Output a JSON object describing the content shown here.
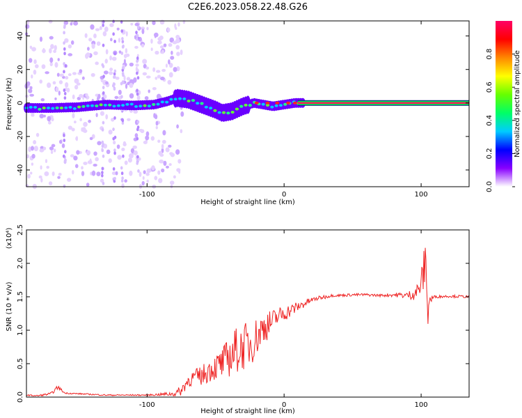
{
  "title": "C2E6.2023.058.22.48.G26",
  "chart_data": [
    {
      "type": "heatmap",
      "xlabel": "Height of straight line (km)",
      "ylabel": "Frequency (Hz)",
      "xlim": [
        -188,
        135
      ],
      "ylim": [
        -50,
        49
      ],
      "xticks": [
        -100,
        0,
        100
      ],
      "xtick_labels": [
        "-100",
        "0",
        "100"
      ],
      "yticks": [
        -40,
        -20,
        0,
        20,
        40
      ],
      "ytick_labels": [
        "-40",
        "-20",
        "0",
        "20",
        "40"
      ],
      "colorbar": {
        "label": "Normalized spectral amplitude",
        "range": [
          0,
          1
        ],
        "ticks": [
          0.0,
          0.2,
          0.4,
          0.6,
          0.8
        ],
        "tick_labels": [
          "0.0",
          "0.2",
          "0.4",
          "0.6",
          "0.8"
        ],
        "colors": [
          "#ffffff",
          "#8800ff",
          "#0000ff",
          "#00ccff",
          "#00ff66",
          "#66ff00",
          "#ffff00",
          "#ff8800",
          "#ff0000",
          "#ff0066"
        ]
      },
      "ridge": {
        "x": [
          -188,
          -170,
          -150,
          -130,
          -110,
          -95,
          -85,
          -78,
          -70,
          -60,
          -50,
          -45,
          -38,
          -30,
          -22,
          -15,
          -8,
          0,
          8,
          15,
          135
        ],
        "freq": [
          -3,
          -3,
          -2.5,
          -1,
          -1.5,
          -1,
          1,
          3,
          2,
          -1,
          -4,
          -6,
          -5,
          -2,
          0,
          -1,
          -2,
          -1,
          0,
          0,
          0
        ]
      }
    },
    {
      "type": "line",
      "xlabel": "Height of straight line (km)",
      "ylabel": "SNR (10 * v/v)",
      "y_multiplier": "(x10⁴)",
      "xlim": [
        -188,
        135
      ],
      "ylim": [
        0,
        2.5
      ],
      "xticks": [
        -100,
        0,
        100
      ],
      "xtick_labels": [
        "-100",
        "0",
        "100"
      ],
      "yticks": [
        0.0,
        0.5,
        1.0,
        1.5,
        2.0,
        2.5
      ],
      "ytick_labels": [
        "0.0",
        "0.5",
        "1.0",
        "1.5",
        "2.0",
        "2.5"
      ],
      "series": [
        {
          "color": "#ee2222",
          "x": [
            -188,
            -180,
            -170,
            -165,
            -160,
            -150,
            -140,
            -130,
            -120,
            -110,
            -100,
            -90,
            -80,
            -75,
            -70,
            -65,
            -60,
            -55,
            -50,
            -45,
            -40,
            -35,
            -30,
            -25,
            -20,
            -15,
            -10,
            -5,
            0,
            5,
            10,
            15,
            20,
            25,
            30,
            35,
            40,
            50,
            60,
            70,
            80,
            90,
            95,
            98,
            100,
            102,
            104,
            105,
            106,
            110,
            120,
            135
          ],
          "y": [
            0.03,
            0.02,
            0.05,
            0.15,
            0.06,
            0.05,
            0.04,
            0.03,
            0.03,
            0.03,
            0.03,
            0.04,
            0.05,
            0.1,
            0.25,
            0.3,
            0.32,
            0.4,
            0.45,
            0.5,
            0.6,
            0.7,
            0.75,
            0.8,
            0.9,
            1.05,
            1.1,
            1.2,
            1.25,
            1.3,
            1.35,
            1.4,
            1.45,
            1.48,
            1.5,
            1.52,
            1.52,
            1.53,
            1.53,
            1.52,
            1.53,
            1.52,
            1.55,
            1.6,
            1.7,
            1.9,
            2.0,
            1.2,
            1.45,
            1.5,
            1.51,
            1.5
          ],
          "noise": [
            0.01,
            0.01,
            0.02,
            0.03,
            0.01,
            0.01,
            0.01,
            0.01,
            0.01,
            0.01,
            0.01,
            0.02,
            0.04,
            0.08,
            0.1,
            0.12,
            0.15,
            0.18,
            0.2,
            0.25,
            0.3,
            0.35,
            0.35,
            0.35,
            0.3,
            0.25,
            0.2,
            0.15,
            0.12,
            0.1,
            0.08,
            0.06,
            0.04,
            0.03,
            0.03,
            0.02,
            0.02,
            0.02,
            0.02,
            0.02,
            0.03,
            0.05,
            0.1,
            0.15,
            0.2,
            0.3,
            0.5,
            0.4,
            0.1,
            0.02,
            0.02,
            0.02
          ]
        }
      ]
    }
  ]
}
